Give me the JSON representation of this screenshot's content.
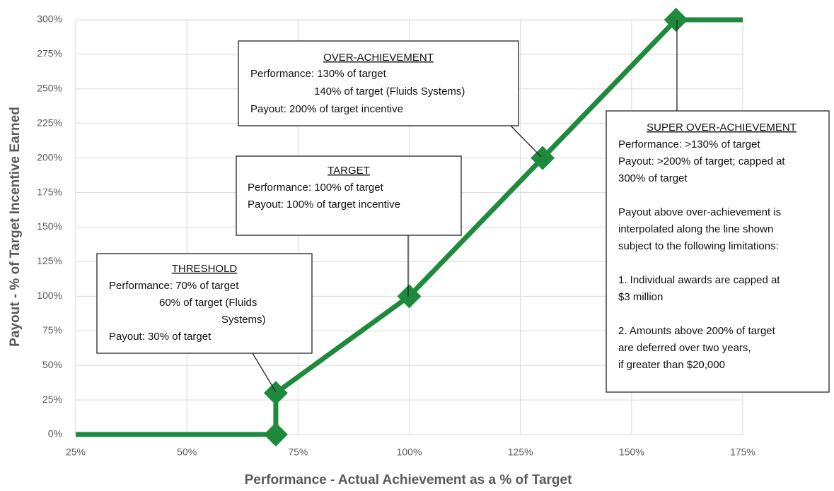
{
  "chart_data": {
    "type": "line",
    "xlabel": "Performance - Actual Achievement as a % of Target",
    "ylabel": "Payout - % of Target Incentive Earned",
    "x": [
      25,
      70,
      70,
      100,
      130,
      160,
      175
    ],
    "series": [
      {
        "color": "#1e8b3c",
        "values": [
          0,
          0,
          30,
          100,
          200,
          300,
          300
        ]
      }
    ],
    "xlim": [
      25,
      175
    ],
    "xticks": [
      {
        "value": 25,
        "label": "25%"
      },
      {
        "value": 50,
        "label": "50%"
      },
      {
        "value": 75,
        "label": "75%"
      },
      {
        "value": 100,
        "label": "100%"
      },
      {
        "value": 125,
        "label": "125%"
      },
      {
        "value": 150,
        "label": "150%"
      },
      {
        "value": 175,
        "label": "175%"
      }
    ],
    "ylim": [
      0,
      300
    ],
    "yticks": [
      {
        "value": 0,
        "label": "0%"
      },
      {
        "value": 25,
        "label": "25%"
      },
      {
        "value": 50,
        "label": "50%"
      },
      {
        "value": 75,
        "label": "75%"
      },
      {
        "value": 100,
        "label": "100%"
      },
      {
        "value": 125,
        "label": "125%"
      },
      {
        "value": 150,
        "label": "150%"
      },
      {
        "value": 175,
        "label": "175%"
      },
      {
        "value": 200,
        "label": "200%"
      },
      {
        "value": 225,
        "label": "225%"
      },
      {
        "value": 250,
        "label": "250%"
      },
      {
        "value": 275,
        "label": "275%"
      },
      {
        "value": 300,
        "label": "300%"
      }
    ],
    "grid": true,
    "annotations": [
      {
        "heading": "OVER-ACHIEVEMENT",
        "lines": [
          "Performance: 130% of target",
          "140% of target (Fluids Systems)",
          "Payout: 200% of target incentive"
        ]
      },
      {
        "heading": "TARGET",
        "lines": [
          "Performance: 100% of target",
          "Payout: 100% of target incentive"
        ]
      },
      {
        "heading": "THRESHOLD",
        "lines": [
          "Performance: 70% of target",
          "60% of target (Fluids",
          "Systems)",
          "Payout: 30% of target"
        ]
      },
      {
        "heading": "SUPER OVER-ACHIEVEMENT",
        "lines": [
          "Performance: >130% of target",
          "Payout: >200% of target; capped at",
          "300% of target",
          "Payout above over-achievement is",
          "interpolated along the line shown",
          "subject to the following limitations:",
          "1. Individual awards are capped at",
          "$3 million",
          "2. Amounts above 200% of target",
          "are deferred over two years,",
          "if greater than $20,000"
        ]
      }
    ]
  }
}
